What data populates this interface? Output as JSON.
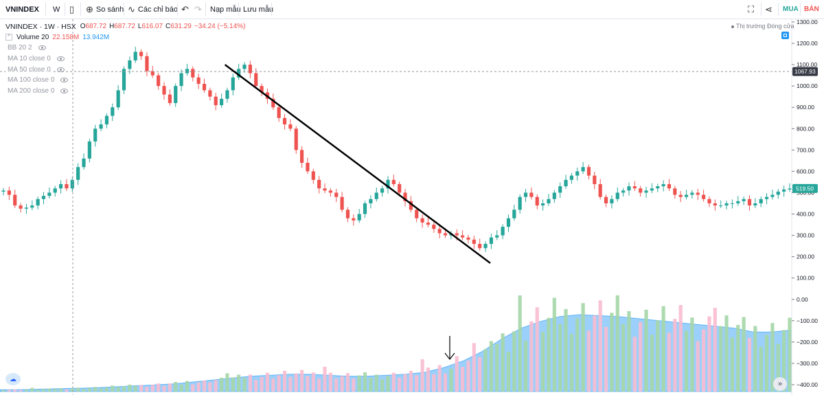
{
  "toolbar": {
    "symbol": "VNINDEX",
    "interval": "W",
    "compare_label": "So sánh",
    "indicators_label": "Các chỉ báo",
    "load_template_label": "Nạp mẫu",
    "save_template_label": "Lưu mẫu",
    "buy_label": "MUA",
    "sell_label": "BÁN"
  },
  "legend": {
    "title": "VNINDEX · 1W · HSX",
    "open_label": "O",
    "open": "687.72",
    "high_label": "H",
    "high": "687.72",
    "low_label": "L",
    "low": "616.07",
    "close_label": "C",
    "close": "631.29",
    "change": "−34.24 (−5.14%)",
    "volume_label": "Volume 20",
    "volume_value": "22.158M",
    "volume_ma": "13.942M",
    "indicators": [
      "BB 20 2",
      "MA 10 close 0",
      "MA 50 close 0",
      "MA 100 close 0",
      "MA 200 close 0"
    ]
  },
  "status": {
    "market": "Thị trường Đóng cửa"
  },
  "colors": {
    "up": "#26a69a",
    "down": "#ef5350",
    "volume_ma": "#2196f3",
    "trendline": "#000000",
    "price_label": "#26a69a",
    "crosshair_label": "#363a45"
  },
  "icons": {
    "toolbar_icons": [
      "candles-icon",
      "compare-plus-icon",
      "indicators-icon",
      "undo-icon",
      "redo-icon",
      "fullscreen-icon",
      "share-icon"
    ]
  },
  "chart_data": {
    "type": "candlestick",
    "price_axis_ticks": [
      "1300.00",
      "1200.00",
      "1100.00",
      "1000.00",
      "900.00",
      "800.00",
      "700.00",
      "600.00",
      "500.00",
      "400.00",
      "300.00",
      "200.00",
      "100.00",
      "0.00",
      "−100.00",
      "−200.00",
      "−300.00",
      "−400.00"
    ],
    "price_ylim": [
      -400,
      1300
    ],
    "current_price_label": "519.50",
    "crosshair_price_label": "1067.93",
    "crosshair_price": 1067.93,
    "trendline": {
      "from": [
        0.273,
        1100
      ],
      "to": [
        0.595,
        170
      ]
    },
    "prices": [
      510,
      490,
      440,
      425,
      430,
      440,
      470,
      485,
      500,
      520,
      540,
      520,
      560,
      620,
      660,
      740,
      800,
      820,
      860,
      900,
      980,
      1080,
      1120,
      1160,
      1140,
      1070,
      1050,
      1000,
      960,
      920,
      1000,
      1060,
      1080,
      1040,
      1010,
      980,
      950,
      910,
      940,
      980,
      1040,
      1080,
      1100,
      1060,
      1000,
      970,
      940,
      900,
      850,
      820,
      800,
      700,
      640,
      600,
      560,
      520,
      510,
      500,
      480,
      420,
      380,
      370,
      400,
      450,
      470,
      500,
      520,
      560,
      540,
      500,
      460,
      420,
      380,
      360,
      350,
      330,
      310,
      300,
      310,
      300,
      290,
      280,
      260,
      240,
      260,
      290,
      300,
      340,
      380,
      420,
      480,
      500,
      480,
      440,
      450,
      470,
      500,
      530,
      560,
      580,
      600,
      620,
      580,
      540,
      480,
      450,
      470,
      500,
      510,
      530,
      520,
      500,
      510,
      520,
      530,
      540,
      520,
      490,
      480,
      490,
      500,
      490,
      470,
      450,
      440,
      440,
      450,
      450,
      460,
      470,
      440,
      450,
      470,
      480,
      490,
      505,
      515,
      519.5
    ],
    "volume_ma": [
      0.02,
      0.02,
      0.025,
      0.03,
      0.035,
      0.04,
      0.05,
      0.06,
      0.07,
      0.08,
      0.1,
      0.12,
      0.14,
      0.16,
      0.17,
      0.18,
      0.18,
      0.17,
      0.16,
      0.16,
      0.17,
      0.18,
      0.2,
      0.25,
      0.32,
      0.42,
      0.55,
      0.66,
      0.73,
      0.78,
      0.8,
      0.79,
      0.78,
      0.76,
      0.74,
      0.72,
      0.7,
      0.68,
      0.66,
      0.62,
      0.62,
      0.64
    ]
  }
}
